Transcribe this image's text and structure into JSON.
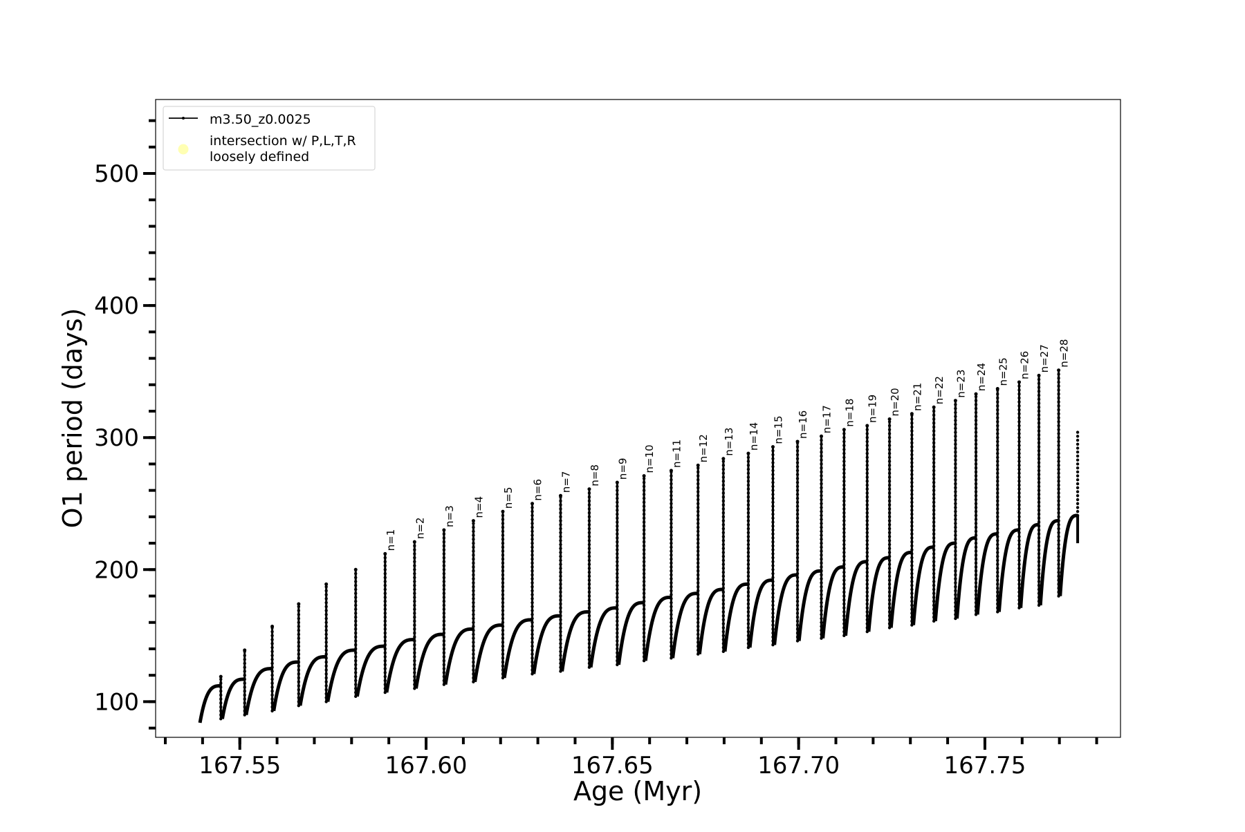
{
  "chart_data": {
    "type": "line",
    "title": "",
    "xlabel": "Age (Myr)",
    "ylabel": "O1 period (days)",
    "xlim": [
      167.5274,
      167.7864
    ],
    "ylim": [
      73,
      556
    ],
    "x_major_ticks": [
      167.55,
      167.6,
      167.65,
      167.7,
      167.75
    ],
    "x_tick_labels": [
      "167.55",
      "167.60",
      "167.65",
      "167.70",
      "167.75"
    ],
    "x_minor_step": 0.01,
    "y_major_ticks": [
      100,
      200,
      300,
      400,
      500
    ],
    "y_tick_labels": [
      "100",
      "200",
      "300",
      "400",
      "500"
    ],
    "y_minor_step": 20,
    "grid": false,
    "legend": {
      "placement": "top-left",
      "entries": [
        {
          "label": "m3.50_z0.0025",
          "marker": "line-with-dot",
          "color": "#000000"
        },
        {
          "label_line1": "intersection w/ P,L,T,R",
          "label_line2": "loosely defined",
          "marker": "circle",
          "color": "#ffffb3"
        }
      ]
    },
    "series": [
      {
        "name": "m3.50_z0.0025",
        "color": "#000000",
        "start": {
          "age": 167.5393,
          "period": 84
        },
        "cycles": [
          {
            "spike_age": 167.5449,
            "plateau": 112,
            "spike_max": 119,
            "dip_after": 87,
            "label": ""
          },
          {
            "spike_age": 167.5513,
            "plateau": 117,
            "spike_max": 139,
            "dip_after": 90,
            "label": ""
          },
          {
            "spike_age": 167.5587,
            "plateau": 125,
            "spike_max": 157,
            "dip_after": 93,
            "label": ""
          },
          {
            "spike_age": 167.5658,
            "plateau": 130,
            "spike_max": 174,
            "dip_after": 97,
            "label": ""
          },
          {
            "spike_age": 167.5732,
            "plateau": 134,
            "spike_max": 189,
            "dip_after": 100,
            "label": ""
          },
          {
            "spike_age": 167.5811,
            "plateau": 139,
            "spike_max": 200,
            "dip_after": 104,
            "label": ""
          },
          {
            "spike_age": 167.589,
            "plateau": 142,
            "spike_max": 212,
            "dip_after": 107,
            "label": "n=1"
          },
          {
            "spike_age": 167.5969,
            "plateau": 147,
            "spike_max": 221,
            "dip_after": 110,
            "label": "n=2"
          },
          {
            "spike_age": 167.6048,
            "plateau": 151,
            "spike_max": 230,
            "dip_after": 113,
            "label": "n=3"
          },
          {
            "spike_age": 167.6127,
            "plateau": 155,
            "spike_max": 237,
            "dip_after": 115,
            "label": "n=4"
          },
          {
            "spike_age": 167.6206,
            "plateau": 158,
            "spike_max": 244,
            "dip_after": 118,
            "label": "n=5"
          },
          {
            "spike_age": 167.6285,
            "plateau": 162,
            "spike_max": 250,
            "dip_after": 121,
            "label": "n=6"
          },
          {
            "spike_age": 167.6361,
            "plateau": 165,
            "spike_max": 256,
            "dip_after": 123,
            "label": "n=7"
          },
          {
            "spike_age": 167.6438,
            "plateau": 168,
            "spike_max": 261,
            "dip_after": 126,
            "label": "n=8"
          },
          {
            "spike_age": 167.6513,
            "plateau": 171,
            "spike_max": 266,
            "dip_after": 128,
            "label": "n=9"
          },
          {
            "spike_age": 167.6585,
            "plateau": 175,
            "spike_max": 271,
            "dip_after": 131,
            "label": "n=10"
          },
          {
            "spike_age": 167.6658,
            "plateau": 179,
            "spike_max": 275,
            "dip_after": 133,
            "label": "n=11"
          },
          {
            "spike_age": 167.673,
            "plateau": 182,
            "spike_max": 279,
            "dip_after": 136,
            "label": "n=12"
          },
          {
            "spike_age": 167.6798,
            "plateau": 185,
            "spike_max": 284,
            "dip_after": 138,
            "label": "n=13"
          },
          {
            "spike_age": 167.6865,
            "plateau": 189,
            "spike_max": 288,
            "dip_after": 141,
            "label": "n=14"
          },
          {
            "spike_age": 167.6931,
            "plateau": 192,
            "spike_max": 293,
            "dip_after": 143,
            "label": "n=15"
          },
          {
            "spike_age": 167.6997,
            "plateau": 196,
            "spike_max": 297,
            "dip_after": 146,
            "label": "n=16"
          },
          {
            "spike_age": 167.7061,
            "plateau": 199,
            "spike_max": 301,
            "dip_after": 148,
            "label": "n=17"
          },
          {
            "spike_age": 167.7122,
            "plateau": 202,
            "spike_max": 306,
            "dip_after": 150,
            "label": "n=18"
          },
          {
            "spike_age": 167.7184,
            "plateau": 206,
            "spike_max": 309,
            "dip_after": 153,
            "label": "n=19"
          },
          {
            "spike_age": 167.7244,
            "plateau": 209,
            "spike_max": 314,
            "dip_after": 156,
            "label": "n=20"
          },
          {
            "spike_age": 167.7304,
            "plateau": 213,
            "spike_max": 318,
            "dip_after": 158,
            "label": "n=21"
          },
          {
            "spike_age": 167.7363,
            "plateau": 217,
            "spike_max": 323,
            "dip_after": 161,
            "label": "n=22"
          },
          {
            "spike_age": 167.7421,
            "plateau": 220,
            "spike_max": 328,
            "dip_after": 163,
            "label": "n=23"
          },
          {
            "spike_age": 167.7476,
            "plateau": 224,
            "spike_max": 333,
            "dip_after": 166,
            "label": "n=24"
          },
          {
            "spike_age": 167.7534,
            "plateau": 227,
            "spike_max": 337,
            "dip_after": 168,
            "label": "n=25"
          },
          {
            "spike_age": 167.7592,
            "plateau": 230,
            "spike_max": 342,
            "dip_after": 171,
            "label": "n=26"
          },
          {
            "spike_age": 167.7645,
            "plateau": 234,
            "spike_max": 347,
            "dip_after": 173,
            "label": "n=27"
          },
          {
            "spike_age": 167.7698,
            "plateau": 237,
            "spike_max": 351,
            "dip_after": 180,
            "label": "n=28"
          }
        ],
        "end": {
          "age": 167.7749,
          "plateau": 241,
          "min": 220,
          "max": 306
        }
      }
    ]
  }
}
